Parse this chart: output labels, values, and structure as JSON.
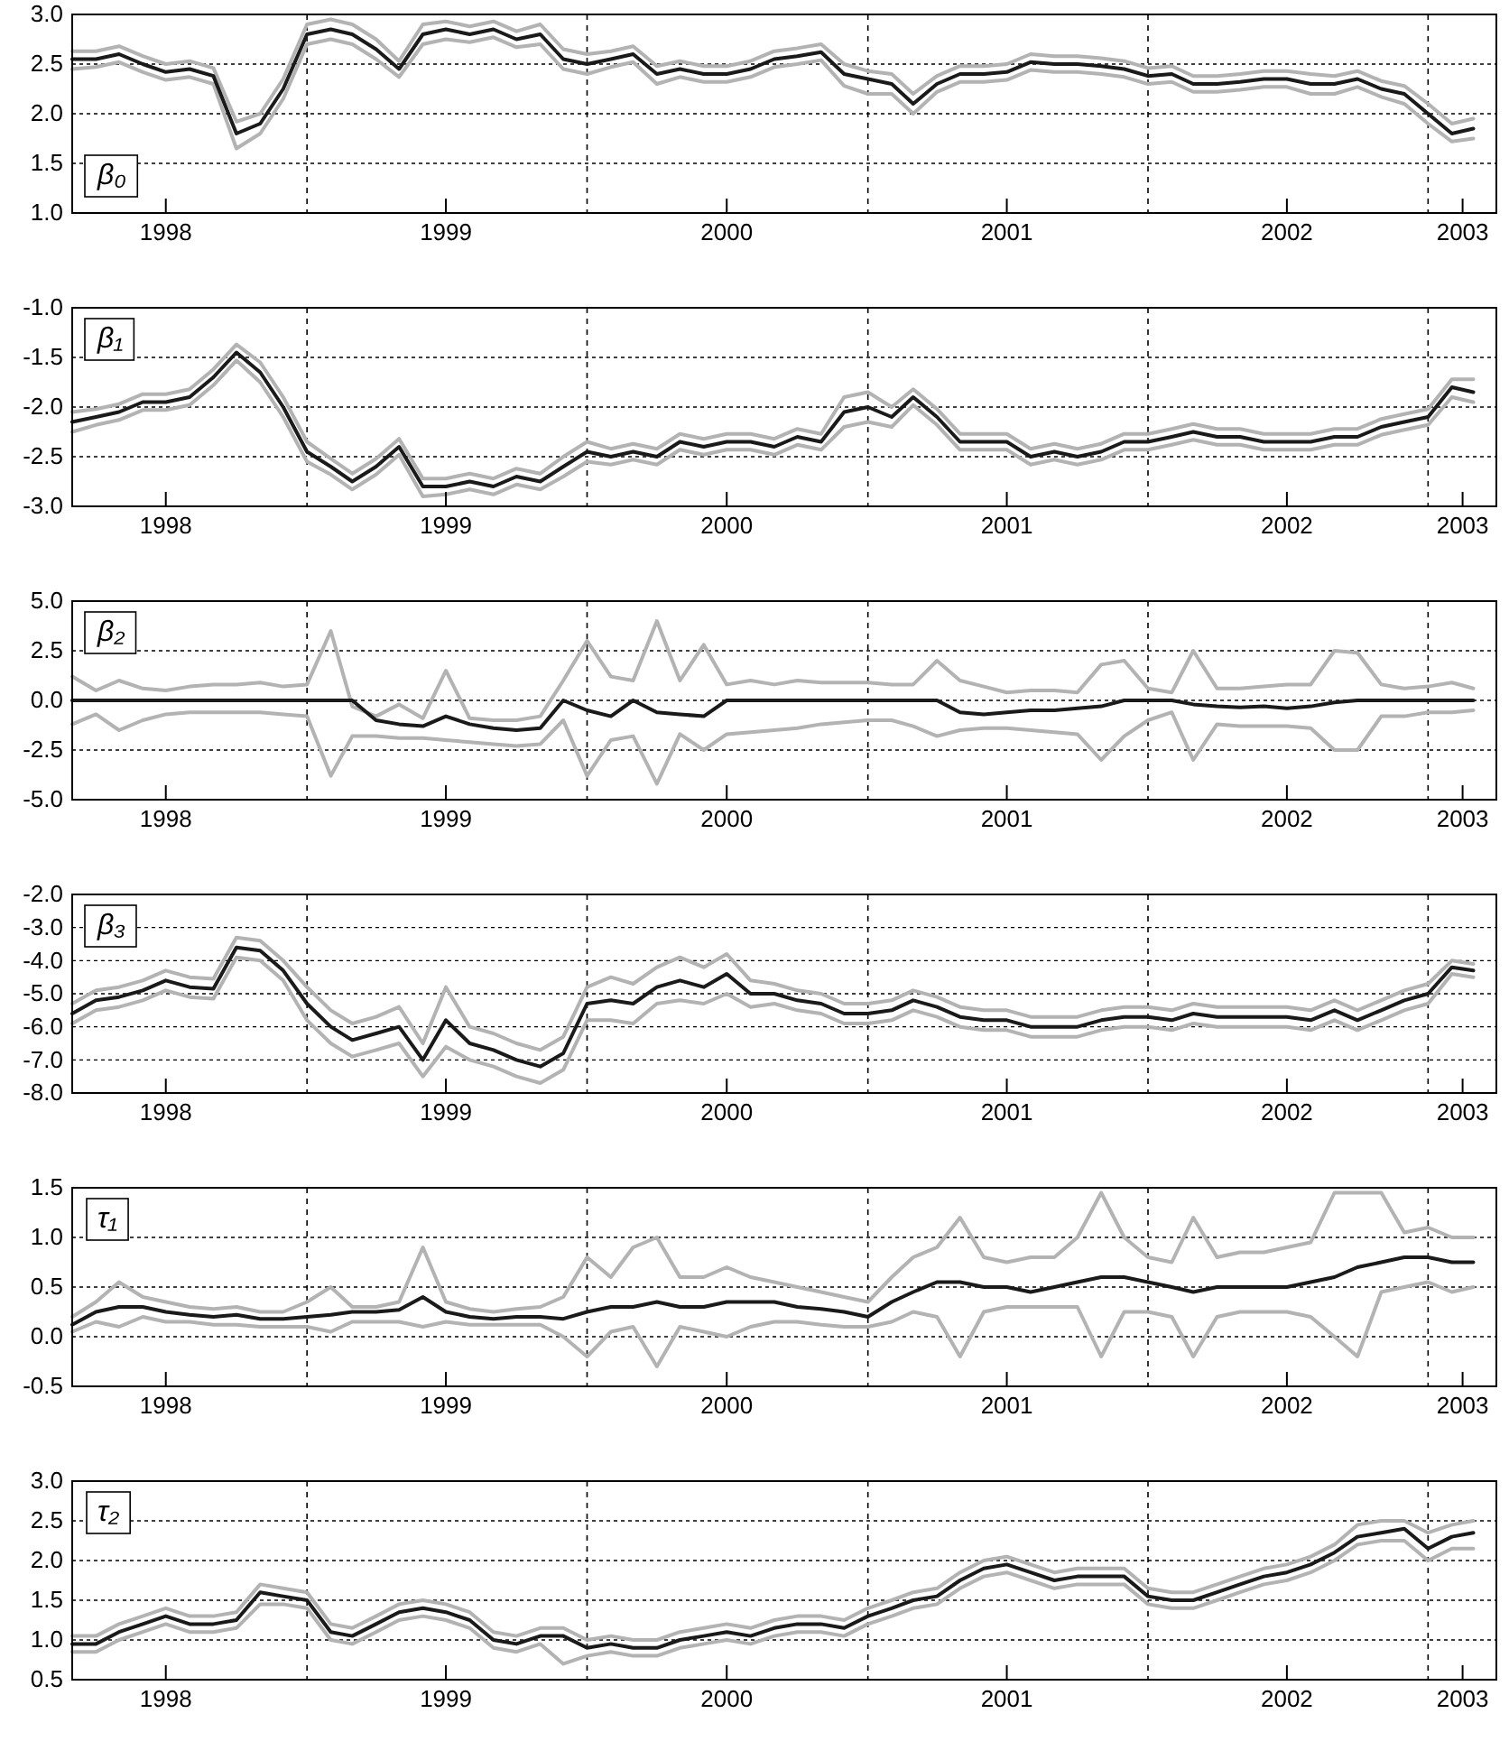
{
  "chart_data": [
    {
      "type": "line",
      "title": "β₀",
      "xlim": [
        "1998-03-01",
        "2003-03-31"
      ],
      "ylim": [
        1,
        3
      ],
      "yticks": [
        {
          "value": 1,
          "label": "1.0"
        },
        {
          "value": 1.5,
          "label": "1.5"
        },
        {
          "value": 2,
          "label": "2.0"
        },
        {
          "value": 2.5,
          "label": "2.5"
        },
        {
          "value": 3,
          "label": "3.0"
        }
      ],
      "xticks": [
        {
          "value": "1998-07-01",
          "label": "1998"
        },
        {
          "value": "1999-07-01",
          "label": "1999"
        },
        {
          "value": "2000-07-01",
          "label": "2000"
        },
        {
          "value": "2001-07-01",
          "label": "2001"
        },
        {
          "value": "2002-07-01",
          "label": "2002"
        },
        {
          "value": "2003-02-15",
          "label": "2003"
        }
      ],
      "grid": "y",
      "line_style": "solid",
      "ref_lines": [
        {
          "axis": "x",
          "value": "1999-01-01",
          "line_style": "dashed"
        },
        {
          "axis": "x",
          "value": "2000-01-01",
          "line_style": "dashed"
        },
        {
          "axis": "x",
          "value": "2001-01-01",
          "line_style": "dashed"
        },
        {
          "axis": "x",
          "value": "2002-01-01",
          "line_style": "dashed"
        },
        {
          "axis": "x",
          "value": "2003-01-01",
          "line_style": "dashed"
        }
      ],
      "x": [
        "1998-03-01",
        "1998-04-01",
        "1998-05-01",
        "1998-06-01",
        "1998-07-01",
        "1998-08-01",
        "1998-09-01",
        "1998-10-01",
        "1998-11-01",
        "1998-12-01",
        "1999-01-01",
        "1999-02-01",
        "1999-03-01",
        "1999-04-01",
        "1999-05-01",
        "1999-06-01",
        "1999-07-01",
        "1999-08-01",
        "1999-09-01",
        "1999-10-01",
        "1999-11-01",
        "1999-12-01",
        "2000-01-01",
        "2000-02-01",
        "2000-03-01",
        "2000-04-01",
        "2000-05-01",
        "2000-06-01",
        "2000-07-01",
        "2000-08-01",
        "2000-09-01",
        "2000-10-01",
        "2000-11-01",
        "2000-12-01",
        "2001-01-01",
        "2001-02-01",
        "2001-03-01",
        "2001-04-01",
        "2001-05-01",
        "2001-06-01",
        "2001-07-01",
        "2001-08-01",
        "2001-09-01",
        "2001-10-01",
        "2001-11-01",
        "2001-12-01",
        "2002-01-01",
        "2002-02-01",
        "2002-03-01",
        "2002-04-01",
        "2002-05-01",
        "2002-06-01",
        "2002-07-01",
        "2002-08-01",
        "2002-09-01",
        "2002-10-01",
        "2002-11-01",
        "2002-12-01",
        "2003-01-01",
        "2003-02-01",
        "2003-03-01"
      ],
      "series": [
        {
          "color": "#b3b3b3",
          "values": [
            2.63,
            2.63,
            2.68,
            2.58,
            2.5,
            2.53,
            2.46,
            1.92,
            2.0,
            2.35,
            2.9,
            2.95,
            2.9,
            2.75,
            2.53,
            2.9,
            2.93,
            2.88,
            2.93,
            2.83,
            2.9,
            2.65,
            2.6,
            2.63,
            2.68,
            2.48,
            2.53,
            2.48,
            2.48,
            2.53,
            2.63,
            2.66,
            2.7,
            2.5,
            2.43,
            2.4,
            2.2,
            2.38,
            2.48,
            2.48,
            2.5,
            2.6,
            2.58,
            2.58,
            2.56,
            2.53,
            2.46,
            2.48,
            2.38,
            2.38,
            2.4,
            2.43,
            2.43,
            2.4,
            2.38,
            2.43,
            2.33,
            2.28,
            2.1,
            1.9,
            1.95
          ]
        },
        {
          "color": "#b3b3b3",
          "values": [
            2.45,
            2.47,
            2.52,
            2.42,
            2.34,
            2.37,
            2.3,
            1.65,
            1.8,
            2.15,
            2.7,
            2.75,
            2.7,
            2.55,
            2.37,
            2.7,
            2.75,
            2.72,
            2.77,
            2.67,
            2.7,
            2.45,
            2.4,
            2.47,
            2.52,
            2.3,
            2.37,
            2.32,
            2.32,
            2.37,
            2.47,
            2.5,
            2.54,
            2.28,
            2.2,
            2.2,
            2.0,
            2.22,
            2.32,
            2.32,
            2.34,
            2.44,
            2.42,
            2.42,
            2.4,
            2.37,
            2.3,
            2.32,
            2.22,
            2.22,
            2.24,
            2.27,
            2.27,
            2.2,
            2.2,
            2.27,
            2.17,
            2.1,
            1.9,
            1.72,
            1.75
          ]
        },
        {
          "color": "#1a1a1a",
          "values": [
            2.55,
            2.55,
            2.6,
            2.5,
            2.42,
            2.45,
            2.38,
            1.8,
            1.9,
            2.25,
            2.8,
            2.85,
            2.8,
            2.65,
            2.45,
            2.8,
            2.85,
            2.8,
            2.85,
            2.75,
            2.8,
            2.55,
            2.5,
            2.55,
            2.6,
            2.4,
            2.45,
            2.4,
            2.4,
            2.45,
            2.55,
            2.58,
            2.62,
            2.4,
            2.35,
            2.3,
            2.1,
            2.3,
            2.4,
            2.4,
            2.42,
            2.52,
            2.5,
            2.5,
            2.48,
            2.45,
            2.38,
            2.4,
            2.3,
            2.3,
            2.32,
            2.35,
            2.35,
            2.3,
            2.3,
            2.35,
            2.25,
            2.2,
            2.0,
            1.8,
            1.85
          ]
        }
      ]
    },
    {
      "type": "line",
      "title": "β₁",
      "xlim": [
        "1998-03-01",
        "2003-03-31"
      ],
      "ylim": [
        -3,
        -1
      ],
      "yticks": [
        {
          "value": -3,
          "label": "-3.0"
        },
        {
          "value": -2.5,
          "label": "-2.5"
        },
        {
          "value": -2,
          "label": "-2.0"
        },
        {
          "value": -1.5,
          "label": "-1.5"
        },
        {
          "value": -1,
          "label": "-1.0"
        }
      ],
      "xticks": [
        {
          "value": "1998-07-01",
          "label": "1998"
        },
        {
          "value": "1999-07-01",
          "label": "1999"
        },
        {
          "value": "2000-07-01",
          "label": "2000"
        },
        {
          "value": "2001-07-01",
          "label": "2001"
        },
        {
          "value": "2002-07-01",
          "label": "2002"
        },
        {
          "value": "2003-02-15",
          "label": "2003"
        }
      ],
      "grid": "y",
      "line_style": "solid",
      "ref_lines": [
        {
          "axis": "x",
          "value": "1999-01-01",
          "line_style": "dashed"
        },
        {
          "axis": "x",
          "value": "2000-01-01",
          "line_style": "dashed"
        },
        {
          "axis": "x",
          "value": "2001-01-01",
          "line_style": "dashed"
        },
        {
          "axis": "x",
          "value": "2002-01-01",
          "line_style": "dashed"
        },
        {
          "axis": "x",
          "value": "2003-01-01",
          "line_style": "dashed"
        }
      ],
      "x": [
        "1998-03-01",
        "1998-04-01",
        "1998-05-01",
        "1998-06-01",
        "1998-07-01",
        "1998-08-01",
        "1998-09-01",
        "1998-10-01",
        "1998-11-01",
        "1998-12-01",
        "1999-01-01",
        "1999-02-01",
        "1999-03-01",
        "1999-04-01",
        "1999-05-01",
        "1999-06-01",
        "1999-07-01",
        "1999-08-01",
        "1999-09-01",
        "1999-10-01",
        "1999-11-01",
        "1999-12-01",
        "2000-01-01",
        "2000-02-01",
        "2000-03-01",
        "2000-04-01",
        "2000-05-01",
        "2000-06-01",
        "2000-07-01",
        "2000-08-01",
        "2000-09-01",
        "2000-10-01",
        "2000-11-01",
        "2000-12-01",
        "2001-01-01",
        "2001-02-01",
        "2001-03-01",
        "2001-04-01",
        "2001-05-01",
        "2001-06-01",
        "2001-07-01",
        "2001-08-01",
        "2001-09-01",
        "2001-10-01",
        "2001-11-01",
        "2001-12-01",
        "2002-01-01",
        "2002-02-01",
        "2002-03-01",
        "2002-04-01",
        "2002-05-01",
        "2002-06-01",
        "2002-07-01",
        "2002-08-01",
        "2002-09-01",
        "2002-10-01",
        "2002-11-01",
        "2002-12-01",
        "2003-01-01",
        "2003-02-01",
        "2003-03-01"
      ],
      "series": [
        {
          "color": "#b3b3b3",
          "values": [
            -2.05,
            -2.02,
            -1.97,
            -1.87,
            -1.87,
            -1.82,
            -1.62,
            -1.37,
            -1.55,
            -1.9,
            -2.35,
            -2.52,
            -2.67,
            -2.52,
            -2.32,
            -2.72,
            -2.72,
            -2.67,
            -2.72,
            -2.62,
            -2.67,
            -2.5,
            -2.35,
            -2.42,
            -2.37,
            -2.42,
            -2.27,
            -2.32,
            -2.27,
            -2.27,
            -2.32,
            -2.22,
            -2.27,
            -1.9,
            -1.85,
            -2.0,
            -1.82,
            -2.02,
            -2.27,
            -2.27,
            -2.27,
            -2.42,
            -2.37,
            -2.42,
            -2.37,
            -2.27,
            -2.27,
            -2.22,
            -2.17,
            -2.22,
            -2.22,
            -2.27,
            -2.27,
            -2.27,
            -2.22,
            -2.22,
            -2.12,
            -2.07,
            -2.02,
            -1.72,
            -1.72
          ]
        },
        {
          "color": "#b3b3b3",
          "values": [
            -2.25,
            -2.18,
            -2.13,
            -2.03,
            -2.03,
            -1.98,
            -1.78,
            -1.53,
            -1.75,
            -2.1,
            -2.55,
            -2.68,
            -2.83,
            -2.68,
            -2.48,
            -2.9,
            -2.88,
            -2.83,
            -2.88,
            -2.78,
            -2.83,
            -2.7,
            -2.55,
            -2.58,
            -2.53,
            -2.58,
            -2.43,
            -2.48,
            -2.43,
            -2.43,
            -2.48,
            -2.38,
            -2.43,
            -2.2,
            -2.15,
            -2.2,
            -1.98,
            -2.18,
            -2.43,
            -2.43,
            -2.43,
            -2.58,
            -2.53,
            -2.58,
            -2.53,
            -2.43,
            -2.43,
            -2.38,
            -2.33,
            -2.38,
            -2.38,
            -2.43,
            -2.43,
            -2.43,
            -2.38,
            -2.38,
            -2.28,
            -2.23,
            -2.18,
            -1.9,
            -1.95
          ]
        },
        {
          "color": "#1a1a1a",
          "values": [
            -2.15,
            -2.1,
            -2.05,
            -1.95,
            -1.95,
            -1.9,
            -1.7,
            -1.45,
            -1.65,
            -2.0,
            -2.45,
            -2.6,
            -2.75,
            -2.6,
            -2.4,
            -2.8,
            -2.8,
            -2.75,
            -2.8,
            -2.7,
            -2.75,
            -2.6,
            -2.45,
            -2.5,
            -2.45,
            -2.5,
            -2.35,
            -2.4,
            -2.35,
            -2.35,
            -2.4,
            -2.3,
            -2.35,
            -2.05,
            -2.0,
            -2.1,
            -1.9,
            -2.1,
            -2.35,
            -2.35,
            -2.35,
            -2.5,
            -2.45,
            -2.5,
            -2.45,
            -2.35,
            -2.35,
            -2.3,
            -2.25,
            -2.3,
            -2.3,
            -2.35,
            -2.35,
            -2.35,
            -2.3,
            -2.3,
            -2.2,
            -2.15,
            -2.1,
            -1.8,
            -1.85
          ]
        }
      ]
    },
    {
      "type": "line",
      "title": "β₂",
      "xlim": [
        "1998-03-01",
        "2003-03-31"
      ],
      "ylim": [
        -5,
        5
      ],
      "yticks": [
        {
          "value": -5,
          "label": "-5.0"
        },
        {
          "value": -2.5,
          "label": "-2.5"
        },
        {
          "value": 0,
          "label": "0.0"
        },
        {
          "value": 2.5,
          "label": "2.5"
        },
        {
          "value": 5,
          "label": "5.0"
        }
      ],
      "xticks": [
        {
          "value": "1998-07-01",
          "label": "1998"
        },
        {
          "value": "1999-07-01",
          "label": "1999"
        },
        {
          "value": "2000-07-01",
          "label": "2000"
        },
        {
          "value": "2001-07-01",
          "label": "2001"
        },
        {
          "value": "2002-07-01",
          "label": "2002"
        },
        {
          "value": "2003-02-15",
          "label": "2003"
        }
      ],
      "grid": "y",
      "line_style": "solid",
      "ref_lines": [
        {
          "axis": "x",
          "value": "1999-01-01",
          "line_style": "dashed"
        },
        {
          "axis": "x",
          "value": "2000-01-01",
          "line_style": "dashed"
        },
        {
          "axis": "x",
          "value": "2001-01-01",
          "line_style": "dashed"
        },
        {
          "axis": "x",
          "value": "2002-01-01",
          "line_style": "dashed"
        },
        {
          "axis": "x",
          "value": "2003-01-01",
          "line_style": "dashed"
        }
      ],
      "x": [
        "1998-03-01",
        "1998-04-01",
        "1998-05-01",
        "1998-06-01",
        "1998-07-01",
        "1998-08-01",
        "1998-09-01",
        "1998-10-01",
        "1998-11-01",
        "1998-12-01",
        "1999-01-01",
        "1999-02-01",
        "1999-03-01",
        "1999-04-01",
        "1999-05-01",
        "1999-06-01",
        "1999-07-01",
        "1999-08-01",
        "1999-09-01",
        "1999-10-01",
        "1999-11-01",
        "1999-12-01",
        "2000-01-01",
        "2000-02-01",
        "2000-03-01",
        "2000-04-01",
        "2000-05-01",
        "2000-06-01",
        "2000-07-01",
        "2000-08-01",
        "2000-09-01",
        "2000-10-01",
        "2000-11-01",
        "2000-12-01",
        "2001-01-01",
        "2001-02-01",
        "2001-03-01",
        "2001-04-01",
        "2001-05-01",
        "2001-06-01",
        "2001-07-01",
        "2001-08-01",
        "2001-09-01",
        "2001-10-01",
        "2001-11-01",
        "2001-12-01",
        "2002-01-01",
        "2002-02-01",
        "2002-03-01",
        "2002-04-01",
        "2002-05-01",
        "2002-06-01",
        "2002-07-01",
        "2002-08-01",
        "2002-09-01",
        "2002-10-01",
        "2002-11-01",
        "2002-12-01",
        "2003-01-01",
        "2003-02-01",
        "2003-03-01"
      ],
      "series": [
        {
          "color": "#b3b3b3",
          "values": [
            1.2,
            0.5,
            1.0,
            0.6,
            0.5,
            0.7,
            0.8,
            0.8,
            0.9,
            0.7,
            0.8,
            3.5,
            -0.3,
            -0.8,
            -0.2,
            -0.9,
            1.5,
            -0.9,
            -1.0,
            -1.0,
            -0.8,
            1.0,
            3.0,
            1.2,
            1.0,
            4.0,
            1.0,
            2.8,
            0.8,
            1.0,
            0.8,
            1.0,
            0.9,
            0.9,
            0.9,
            0.8,
            0.8,
            2.0,
            1.0,
            0.7,
            0.4,
            0.5,
            0.5,
            0.4,
            1.8,
            2.0,
            0.6,
            0.4,
            2.5,
            0.6,
            0.6,
            0.7,
            0.8,
            0.8,
            2.5,
            2.4,
            0.8,
            0.6,
            0.7,
            0.9,
            0.6
          ]
        },
        {
          "color": "#b3b3b3",
          "values": [
            -1.2,
            -0.7,
            -1.5,
            -1.0,
            -0.7,
            -0.6,
            -0.6,
            -0.6,
            -0.6,
            -0.7,
            -0.8,
            -3.8,
            -1.8,
            -1.8,
            -1.9,
            -1.9,
            -2.0,
            -2.1,
            -2.2,
            -2.3,
            -2.2,
            -1.0,
            -3.8,
            -2.0,
            -1.8,
            -4.2,
            -1.7,
            -2.5,
            -1.7,
            -1.6,
            -1.5,
            -1.4,
            -1.2,
            -1.1,
            -1.0,
            -1.0,
            -1.3,
            -1.8,
            -1.5,
            -1.4,
            -1.4,
            -1.5,
            -1.6,
            -1.7,
            -3.0,
            -1.8,
            -1.0,
            -0.6,
            -3.0,
            -1.2,
            -1.3,
            -1.3,
            -1.3,
            -1.4,
            -2.5,
            -2.5,
            -0.8,
            -0.8,
            -0.6,
            -0.6,
            -0.5
          ]
        },
        {
          "color": "#1a1a1a",
          "values": [
            0,
            0,
            0,
            0,
            0,
            0,
            0,
            0,
            0,
            0,
            0,
            0,
            0,
            -1.0,
            -1.2,
            -1.3,
            -0.8,
            -1.2,
            -1.4,
            -1.5,
            -1.4,
            0,
            -0.5,
            -0.8,
            0,
            -0.6,
            -0.7,
            -0.8,
            0,
            0,
            0,
            0,
            0,
            0,
            0,
            0,
            0,
            0,
            -0.6,
            -0.7,
            -0.6,
            -0.5,
            -0.5,
            -0.4,
            -0.3,
            0,
            0,
            0,
            -0.2,
            -0.3,
            -0.35,
            -0.3,
            -0.4,
            -0.3,
            -0.1,
            0,
            0,
            0,
            0,
            0,
            0
          ]
        }
      ]
    },
    {
      "type": "line",
      "title": "β₃",
      "xlim": [
        "1998-03-01",
        "2003-03-31"
      ],
      "ylim": [
        -8,
        -2
      ],
      "yticks": [
        {
          "value": -8,
          "label": "-8.0"
        },
        {
          "value": -7,
          "label": "-7.0"
        },
        {
          "value": -6,
          "label": "-6.0"
        },
        {
          "value": -5,
          "label": "-5.0"
        },
        {
          "value": -4,
          "label": "-4.0"
        },
        {
          "value": -3,
          "label": "-3.0"
        },
        {
          "value": -2,
          "label": "-2.0"
        }
      ],
      "xticks": [
        {
          "value": "1998-07-01",
          "label": "1998"
        },
        {
          "value": "1999-07-01",
          "label": "1999"
        },
        {
          "value": "2000-07-01",
          "label": "2000"
        },
        {
          "value": "2001-07-01",
          "label": "2001"
        },
        {
          "value": "2002-07-01",
          "label": "2002"
        },
        {
          "value": "2003-02-15",
          "label": "2003"
        }
      ],
      "grid": "y",
      "line_style": "solid",
      "ref_lines": [
        {
          "axis": "x",
          "value": "1999-01-01",
          "line_style": "dashed"
        },
        {
          "axis": "x",
          "value": "2000-01-01",
          "line_style": "dashed"
        },
        {
          "axis": "x",
          "value": "2001-01-01",
          "line_style": "dashed"
        },
        {
          "axis": "x",
          "value": "2002-01-01",
          "line_style": "dashed"
        },
        {
          "axis": "x",
          "value": "2003-01-01",
          "line_style": "dashed"
        }
      ],
      "x": [
        "1998-03-01",
        "1998-04-01",
        "1998-05-01",
        "1998-06-01",
        "1998-07-01",
        "1998-08-01",
        "1998-09-01",
        "1998-10-01",
        "1998-11-01",
        "1998-12-01",
        "1999-01-01",
        "1999-02-01",
        "1999-03-01",
        "1999-04-01",
        "1999-05-01",
        "1999-06-01",
        "1999-07-01",
        "1999-08-01",
        "1999-09-01",
        "1999-10-01",
        "1999-11-01",
        "1999-12-01",
        "2000-01-01",
        "2000-02-01",
        "2000-03-01",
        "2000-04-01",
        "2000-05-01",
        "2000-06-01",
        "2000-07-01",
        "2000-08-01",
        "2000-09-01",
        "2000-10-01",
        "2000-11-01",
        "2000-12-01",
        "2001-01-01",
        "2001-02-01",
        "2001-03-01",
        "2001-04-01",
        "2001-05-01",
        "2001-06-01",
        "2001-07-01",
        "2001-08-01",
        "2001-09-01",
        "2001-10-01",
        "2001-11-01",
        "2001-12-01",
        "2002-01-01",
        "2002-02-01",
        "2002-03-01",
        "2002-04-01",
        "2002-05-01",
        "2002-06-01",
        "2002-07-01",
        "2002-08-01",
        "2002-09-01",
        "2002-10-01",
        "2002-11-01",
        "2002-12-01",
        "2003-01-01",
        "2003-02-01",
        "2003-03-01"
      ],
      "series": [
        {
          "color": "#b3b3b3",
          "values": [
            -5.3,
            -4.9,
            -4.8,
            -4.6,
            -4.3,
            -4.5,
            -4.55,
            -3.3,
            -3.4,
            -4.0,
            -4.8,
            -5.5,
            -5.9,
            -5.7,
            -5.4,
            -6.5,
            -4.8,
            -6.0,
            -6.2,
            -6.5,
            -6.7,
            -6.3,
            -4.8,
            -4.5,
            -4.7,
            -4.2,
            -3.9,
            -4.2,
            -3.8,
            -4.6,
            -4.7,
            -4.9,
            -5.0,
            -5.3,
            -5.3,
            -5.2,
            -4.9,
            -5.1,
            -5.4,
            -5.5,
            -5.5,
            -5.7,
            -5.7,
            -5.7,
            -5.5,
            -5.4,
            -5.4,
            -5.5,
            -5.3,
            -5.4,
            -5.4,
            -5.4,
            -5.4,
            -5.5,
            -5.2,
            -5.5,
            -5.2,
            -4.9,
            -4.7,
            -4.0,
            -4.1
          ]
        },
        {
          "color": "#b3b3b3",
          "values": [
            -5.9,
            -5.5,
            -5.4,
            -5.2,
            -4.9,
            -5.1,
            -5.15,
            -3.9,
            -4.0,
            -4.6,
            -5.8,
            -6.5,
            -6.9,
            -6.7,
            -6.5,
            -7.5,
            -6.6,
            -7.0,
            -7.2,
            -7.5,
            -7.7,
            -7.3,
            -5.8,
            -5.8,
            -5.9,
            -5.3,
            -5.2,
            -5.3,
            -5.0,
            -5.4,
            -5.3,
            -5.5,
            -5.6,
            -5.9,
            -5.9,
            -5.8,
            -5.5,
            -5.7,
            -6.0,
            -6.1,
            -6.1,
            -6.3,
            -6.3,
            -6.3,
            -6.1,
            -6.0,
            -6.0,
            -6.1,
            -5.9,
            -6.0,
            -6.0,
            -6.0,
            -6.0,
            -6.1,
            -5.8,
            -6.1,
            -5.8,
            -5.5,
            -5.3,
            -4.4,
            -4.5
          ]
        },
        {
          "color": "#1a1a1a",
          "values": [
            -5.6,
            -5.2,
            -5.1,
            -4.9,
            -4.6,
            -4.8,
            -4.85,
            -3.6,
            -3.7,
            -4.3,
            -5.3,
            -6.0,
            -6.4,
            -6.2,
            -6.0,
            -7.0,
            -5.8,
            -6.5,
            -6.7,
            -7.0,
            -7.2,
            -6.8,
            -5.3,
            -5.2,
            -5.3,
            -4.8,
            -4.6,
            -4.8,
            -4.4,
            -5.0,
            -5.0,
            -5.2,
            -5.3,
            -5.6,
            -5.6,
            -5.5,
            -5.2,
            -5.4,
            -5.7,
            -5.8,
            -5.8,
            -6.0,
            -6.0,
            -6.0,
            -5.8,
            -5.7,
            -5.7,
            -5.8,
            -5.6,
            -5.7,
            -5.7,
            -5.7,
            -5.7,
            -5.8,
            -5.5,
            -5.8,
            -5.5,
            -5.2,
            -5.0,
            -4.2,
            -4.3
          ]
        }
      ]
    },
    {
      "type": "line",
      "title": "τ₁",
      "xlim": [
        "1998-03-01",
        "2003-03-31"
      ],
      "ylim": [
        -0.5,
        1.5
      ],
      "yticks": [
        {
          "value": -0.5,
          "label": "-0.5"
        },
        {
          "value": 0,
          "label": "0.0"
        },
        {
          "value": 0.5,
          "label": "0.5"
        },
        {
          "value": 1,
          "label": "1.0"
        },
        {
          "value": 1.5,
          "label": "1.5"
        }
      ],
      "xticks": [
        {
          "value": "1998-07-01",
          "label": "1998"
        },
        {
          "value": "1999-07-01",
          "label": "1999"
        },
        {
          "value": "2000-07-01",
          "label": "2000"
        },
        {
          "value": "2001-07-01",
          "label": "2001"
        },
        {
          "value": "2002-07-01",
          "label": "2002"
        },
        {
          "value": "2003-02-15",
          "label": "2003"
        }
      ],
      "grid": "y",
      "line_style": "solid",
      "ref_lines": [
        {
          "axis": "x",
          "value": "1999-01-01",
          "line_style": "dashed"
        },
        {
          "axis": "x",
          "value": "2000-01-01",
          "line_style": "dashed"
        },
        {
          "axis": "x",
          "value": "2001-01-01",
          "line_style": "dashed"
        },
        {
          "axis": "x",
          "value": "2002-01-01",
          "line_style": "dashed"
        },
        {
          "axis": "x",
          "value": "2003-01-01",
          "line_style": "dashed"
        }
      ],
      "x": [
        "1998-03-01",
        "1998-04-01",
        "1998-05-01",
        "1998-06-01",
        "1998-07-01",
        "1998-08-01",
        "1998-09-01",
        "1998-10-01",
        "1998-11-01",
        "1998-12-01",
        "1999-01-01",
        "1999-02-01",
        "1999-03-01",
        "1999-04-01",
        "1999-05-01",
        "1999-06-01",
        "1999-07-01",
        "1999-08-01",
        "1999-09-01",
        "1999-10-01",
        "1999-11-01",
        "1999-12-01",
        "2000-01-01",
        "2000-02-01",
        "2000-03-01",
        "2000-04-01",
        "2000-05-01",
        "2000-06-01",
        "2000-07-01",
        "2000-08-01",
        "2000-09-01",
        "2000-10-01",
        "2000-11-01",
        "2000-12-01",
        "2001-01-01",
        "2001-02-01",
        "2001-03-01",
        "2001-04-01",
        "2001-05-01",
        "2001-06-01",
        "2001-07-01",
        "2001-08-01",
        "2001-09-01",
        "2001-10-01",
        "2001-11-01",
        "2001-12-01",
        "2002-01-01",
        "2002-02-01",
        "2002-03-01",
        "2002-04-01",
        "2002-05-01",
        "2002-06-01",
        "2002-07-01",
        "2002-08-01",
        "2002-09-01",
        "2002-10-01",
        "2002-11-01",
        "2002-12-01",
        "2003-01-01",
        "2003-02-01",
        "2003-03-01"
      ],
      "series": [
        {
          "color": "#b3b3b3",
          "values": [
            0.2,
            0.35,
            0.55,
            0.4,
            0.35,
            0.3,
            0.28,
            0.3,
            0.25,
            0.25,
            0.35,
            0.5,
            0.3,
            0.3,
            0.35,
            0.9,
            0.35,
            0.28,
            0.25,
            0.28,
            0.3,
            0.4,
            0.8,
            0.6,
            0.9,
            1.0,
            0.6,
            0.6,
            0.7,
            0.6,
            0.55,
            0.5,
            0.45,
            0.4,
            0.35,
            0.6,
            0.8,
            0.9,
            1.2,
            0.8,
            0.75,
            0.8,
            0.8,
            1.0,
            1.45,
            1.0,
            0.8,
            0.75,
            1.2,
            0.8,
            0.85,
            0.85,
            0.9,
            0.95,
            1.45,
            1.45,
            1.45,
            1.05,
            1.1,
            1.0,
            1.0
          ]
        },
        {
          "color": "#b3b3b3",
          "values": [
            0.05,
            0.15,
            0.1,
            0.2,
            0.15,
            0.15,
            0.12,
            0.12,
            0.1,
            0.1,
            0.1,
            0.05,
            0.15,
            0.15,
            0.15,
            0.1,
            0.15,
            0.12,
            0.12,
            0.12,
            0.12,
            0.0,
            -0.2,
            0.05,
            0.1,
            -0.3,
            0.1,
            0.05,
            0.0,
            0.1,
            0.15,
            0.15,
            0.12,
            0.1,
            0.1,
            0.15,
            0.25,
            0.2,
            -0.2,
            0.25,
            0.3,
            0.3,
            0.3,
            0.3,
            -0.2,
            0.25,
            0.25,
            0.2,
            -0.2,
            0.2,
            0.25,
            0.25,
            0.25,
            0.2,
            0.0,
            -0.2,
            0.45,
            0.5,
            0.55,
            0.45,
            0.5
          ]
        },
        {
          "color": "#1a1a1a",
          "values": [
            0.12,
            0.25,
            0.3,
            0.3,
            0.25,
            0.22,
            0.2,
            0.22,
            0.18,
            0.18,
            0.2,
            0.22,
            0.25,
            0.25,
            0.27,
            0.4,
            0.25,
            0.2,
            0.18,
            0.2,
            0.2,
            0.18,
            0.25,
            0.3,
            0.3,
            0.35,
            0.3,
            0.3,
            0.35,
            0.35,
            0.35,
            0.3,
            0.28,
            0.25,
            0.2,
            0.35,
            0.45,
            0.55,
            0.55,
            0.5,
            0.5,
            0.45,
            0.5,
            0.55,
            0.6,
            0.6,
            0.55,
            0.5,
            0.45,
            0.5,
            0.5,
            0.5,
            0.5,
            0.55,
            0.6,
            0.7,
            0.75,
            0.8,
            0.8,
            0.75,
            0.75
          ]
        }
      ]
    },
    {
      "type": "line",
      "title": "τ₂",
      "xlim": [
        "1998-03-01",
        "2003-03-31"
      ],
      "ylim": [
        0.5,
        3
      ],
      "yticks": [
        {
          "value": 0.5,
          "label": "0.5"
        },
        {
          "value": 1,
          "label": "1.0"
        },
        {
          "value": 1.5,
          "label": "1.5"
        },
        {
          "value": 2,
          "label": "2.0"
        },
        {
          "value": 2.5,
          "label": "2.5"
        },
        {
          "value": 3,
          "label": "3.0"
        }
      ],
      "xticks": [
        {
          "value": "1998-07-01",
          "label": "1998"
        },
        {
          "value": "1999-07-01",
          "label": "1999"
        },
        {
          "value": "2000-07-01",
          "label": "2000"
        },
        {
          "value": "2001-07-01",
          "label": "2001"
        },
        {
          "value": "2002-07-01",
          "label": "2002"
        },
        {
          "value": "2003-02-15",
          "label": "2003"
        }
      ],
      "grid": "y",
      "line_style": "solid",
      "ref_lines": [
        {
          "axis": "x",
          "value": "1999-01-01",
          "line_style": "dashed"
        },
        {
          "axis": "x",
          "value": "2000-01-01",
          "line_style": "dashed"
        },
        {
          "axis": "x",
          "value": "2001-01-01",
          "line_style": "dashed"
        },
        {
          "axis": "x",
          "value": "2002-01-01",
          "line_style": "dashed"
        },
        {
          "axis": "x",
          "value": "2003-01-01",
          "line_style": "dashed"
        }
      ],
      "x": [
        "1998-03-01",
        "1998-04-01",
        "1998-05-01",
        "1998-06-01",
        "1998-07-01",
        "1998-08-01",
        "1998-09-01",
        "1998-10-01",
        "1998-11-01",
        "1998-12-01",
        "1999-01-01",
        "1999-02-01",
        "1999-03-01",
        "1999-04-01",
        "1999-05-01",
        "1999-06-01",
        "1999-07-01",
        "1999-08-01",
        "1999-09-01",
        "1999-10-01",
        "1999-11-01",
        "1999-12-01",
        "2000-01-01",
        "2000-02-01",
        "2000-03-01",
        "2000-04-01",
        "2000-05-01",
        "2000-06-01",
        "2000-07-01",
        "2000-08-01",
        "2000-09-01",
        "2000-10-01",
        "2000-11-01",
        "2000-12-01",
        "2001-01-01",
        "2001-02-01",
        "2001-03-01",
        "2001-04-01",
        "2001-05-01",
        "2001-06-01",
        "2001-07-01",
        "2001-08-01",
        "2001-09-01",
        "2001-10-01",
        "2001-11-01",
        "2001-12-01",
        "2002-01-01",
        "2002-02-01",
        "2002-03-01",
        "2002-04-01",
        "2002-05-01",
        "2002-06-01",
        "2002-07-01",
        "2002-08-01",
        "2002-09-01",
        "2002-10-01",
        "2002-11-01",
        "2002-12-01",
        "2003-01-01",
        "2003-02-01",
        "2003-03-01"
      ],
      "series": [
        {
          "color": "#b3b3b3",
          "values": [
            1.05,
            1.05,
            1.2,
            1.3,
            1.4,
            1.3,
            1.3,
            1.35,
            1.7,
            1.65,
            1.6,
            1.2,
            1.15,
            1.3,
            1.45,
            1.5,
            1.45,
            1.35,
            1.1,
            1.05,
            1.15,
            1.15,
            1.0,
            1.05,
            1.0,
            1.0,
            1.1,
            1.15,
            1.2,
            1.15,
            1.25,
            1.3,
            1.3,
            1.25,
            1.4,
            1.5,
            1.6,
            1.65,
            1.85,
            2.0,
            2.05,
            1.95,
            1.85,
            1.9,
            1.9,
            1.9,
            1.65,
            1.6,
            1.6,
            1.7,
            1.8,
            1.9,
            1.95,
            2.05,
            2.2,
            2.45,
            2.5,
            2.5,
            2.35,
            2.45,
            2.5
          ]
        },
        {
          "color": "#b3b3b3",
          "values": [
            0.85,
            0.85,
            1.0,
            1.1,
            1.2,
            1.1,
            1.1,
            1.15,
            1.45,
            1.45,
            1.4,
            1.0,
            0.95,
            1.1,
            1.25,
            1.3,
            1.25,
            1.15,
            0.9,
            0.85,
            0.95,
            0.7,
            0.8,
            0.85,
            0.8,
            0.8,
            0.9,
            0.95,
            1.0,
            0.95,
            1.05,
            1.1,
            1.1,
            1.05,
            1.2,
            1.3,
            1.4,
            1.45,
            1.65,
            1.8,
            1.85,
            1.75,
            1.65,
            1.7,
            1.7,
            1.7,
            1.45,
            1.4,
            1.4,
            1.5,
            1.6,
            1.7,
            1.75,
            1.85,
            2.0,
            2.2,
            2.25,
            2.25,
            2.0,
            2.15,
            2.15
          ]
        },
        {
          "color": "#1a1a1a",
          "values": [
            0.95,
            0.95,
            1.1,
            1.2,
            1.3,
            1.2,
            1.2,
            1.25,
            1.6,
            1.55,
            1.5,
            1.1,
            1.05,
            1.2,
            1.35,
            1.4,
            1.35,
            1.25,
            1.0,
            0.95,
            1.05,
            1.05,
            0.9,
            0.95,
            0.9,
            0.9,
            1.0,
            1.05,
            1.1,
            1.05,
            1.15,
            1.2,
            1.2,
            1.15,
            1.3,
            1.4,
            1.5,
            1.55,
            1.75,
            1.9,
            1.95,
            1.85,
            1.75,
            1.8,
            1.8,
            1.8,
            1.55,
            1.5,
            1.5,
            1.6,
            1.7,
            1.8,
            1.85,
            1.95,
            2.1,
            2.3,
            2.35,
            2.4,
            2.15,
            2.3,
            2.35
          ]
        }
      ]
    }
  ]
}
